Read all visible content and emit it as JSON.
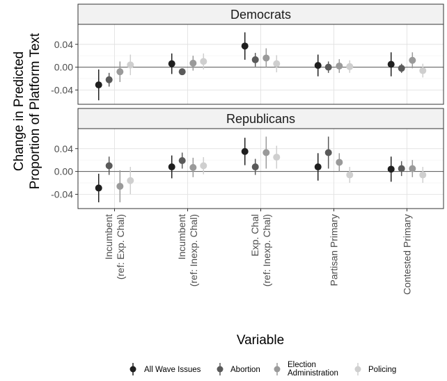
{
  "chart_data": {
    "type": "scatter",
    "subtype": "point-range (coefficient plot), faceted",
    "ylabel_lines": [
      "Change in Predicted",
      "Proportion of Platform Text"
    ],
    "xlabel": "Variable",
    "categories": [
      [
        "Incumbent",
        "(ref: Exp. Chal)"
      ],
      [
        "Incumbent",
        "(ref: Inexp. Chal)"
      ],
      [
        "Exp. Chal",
        "(ref: Inexp. Chal)"
      ],
      [
        "Partisan Primary"
      ],
      [
        "Contested Primary"
      ]
    ],
    "ylim": [
      -0.065,
      0.075
    ],
    "yticks": [
      -0.04,
      0.0,
      0.04
    ],
    "ytick_labels": [
      "-0.04",
      "0.00",
      "0.04"
    ],
    "grid": true,
    "reference_line_y": 0,
    "legend_position": "bottom",
    "series": [
      {
        "name": "All Wave Issues",
        "color": "#1f1f1f"
      },
      {
        "name": "Abortion",
        "color": "#5a5a5a"
      },
      {
        "name": "Election Administration",
        "name_lines": [
          "Election",
          "Administration"
        ],
        "color": "#9a9a9a"
      },
      {
        "name": "Policing",
        "color": "#cfcfcf"
      }
    ],
    "panels": [
      {
        "title": "Democrats",
        "points": [
          [
            {
              "y": -0.031,
              "lo": -0.058,
              "hi": -0.004
            },
            {
              "y": -0.022,
              "lo": -0.034,
              "hi": -0.01
            },
            {
              "y": -0.008,
              "lo": -0.026,
              "hi": 0.01
            },
            {
              "y": 0.004,
              "lo": -0.014,
              "hi": 0.022
            }
          ],
          [
            {
              "y": 0.006,
              "lo": -0.012,
              "hi": 0.024
            },
            {
              "y": -0.008,
              "lo": -0.012,
              "hi": -0.004
            },
            {
              "y": 0.007,
              "lo": -0.006,
              "hi": 0.02
            },
            {
              "y": 0.01,
              "lo": -0.004,
              "hi": 0.024
            }
          ],
          [
            {
              "y": 0.037,
              "lo": 0.013,
              "hi": 0.061
            },
            {
              "y": 0.013,
              "lo": 0.001,
              "hi": 0.025
            },
            {
              "y": 0.016,
              "lo": -0.001,
              "hi": 0.033
            },
            {
              "y": 0.006,
              "lo": -0.009,
              "hi": 0.021
            }
          ],
          [
            {
              "y": 0.003,
              "lo": -0.016,
              "hi": 0.022
            },
            {
              "y": 0.0,
              "lo": -0.01,
              "hi": 0.01
            },
            {
              "y": 0.002,
              "lo": -0.01,
              "hi": 0.014
            },
            {
              "y": 0.001,
              "lo": -0.01,
              "hi": 0.012
            }
          ],
          [
            {
              "y": 0.005,
              "lo": -0.016,
              "hi": 0.026
            },
            {
              "y": -0.002,
              "lo": -0.01,
              "hi": 0.006
            },
            {
              "y": 0.012,
              "lo": -0.002,
              "hi": 0.026
            },
            {
              "y": -0.006,
              "lo": -0.018,
              "hi": 0.006
            }
          ]
        ]
      },
      {
        "title": "Republicans",
        "points": [
          [
            {
              "y": -0.029,
              "lo": -0.054,
              "hi": -0.004
            },
            {
              "y": 0.01,
              "lo": -0.006,
              "hi": 0.026
            },
            {
              "y": -0.026,
              "lo": -0.054,
              "hi": 0.002
            },
            {
              "y": -0.016,
              "lo": -0.04,
              "hi": 0.008
            }
          ],
          [
            {
              "y": 0.008,
              "lo": -0.012,
              "hi": 0.028
            },
            {
              "y": 0.019,
              "lo": 0.005,
              "hi": 0.033
            },
            {
              "y": 0.007,
              "lo": -0.01,
              "hi": 0.024
            },
            {
              "y": 0.01,
              "lo": -0.005,
              "hi": 0.025
            }
          ],
          [
            {
              "y": 0.035,
              "lo": 0.011,
              "hi": 0.059
            },
            {
              "y": 0.008,
              "lo": -0.006,
              "hi": 0.022
            },
            {
              "y": 0.033,
              "lo": 0.005,
              "hi": 0.061
            },
            {
              "y": 0.025,
              "lo": 0.005,
              "hi": 0.045
            }
          ],
          [
            {
              "y": 0.008,
              "lo": -0.016,
              "hi": 0.032
            },
            {
              "y": 0.033,
              "lo": 0.005,
              "hi": 0.061
            },
            {
              "y": 0.016,
              "lo": 0.0,
              "hi": 0.032
            },
            {
              "y": -0.006,
              "lo": -0.02,
              "hi": 0.008
            }
          ],
          [
            {
              "y": 0.004,
              "lo": -0.018,
              "hi": 0.026
            },
            {
              "y": 0.005,
              "lo": -0.008,
              "hi": 0.018
            },
            {
              "y": 0.005,
              "lo": -0.01,
              "hi": 0.02
            },
            {
              "y": -0.006,
              "lo": -0.02,
              "hi": 0.008
            }
          ]
        ]
      }
    ]
  }
}
